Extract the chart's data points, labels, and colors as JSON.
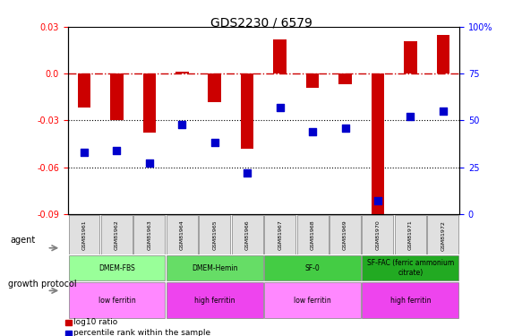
{
  "title": "GDS2230 / 6579",
  "samples": [
    "GSM81961",
    "GSM81962",
    "GSM81963",
    "GSM81964",
    "GSM81965",
    "GSM81966",
    "GSM81967",
    "GSM81968",
    "GSM81969",
    "GSM81970",
    "GSM81971",
    "GSM81972"
  ],
  "log10_ratio": [
    -0.022,
    -0.03,
    -0.038,
    0.001,
    -0.018,
    -0.048,
    0.022,
    -0.009,
    -0.007,
    -0.092,
    0.021,
    0.025
  ],
  "percentile_rank": [
    33,
    34,
    27,
    48,
    38,
    22,
    57,
    44,
    46,
    7,
    52,
    55
  ],
  "ylim_left": [
    -0.09,
    0.03
  ],
  "ylim_right": [
    0,
    100
  ],
  "yticks_left": [
    -0.09,
    -0.06,
    -0.03,
    0.0,
    0.03
  ],
  "yticks_right": [
    0,
    25,
    50,
    75,
    100
  ],
  "hline_zero": 0.0,
  "hline_dotted": [
    -0.03,
    -0.06
  ],
  "bar_color": "#CC0000",
  "scatter_color": "#0000CC",
  "agent_groups": [
    {
      "label": "DMEM-FBS",
      "start": 0,
      "end": 3,
      "color": "#99FF99"
    },
    {
      "label": "DMEM-Hemin",
      "start": 3,
      "end": 6,
      "color": "#66DD66"
    },
    {
      "label": "SF-0",
      "start": 6,
      "end": 9,
      "color": "#44CC44"
    },
    {
      "label": "SF-FAC (ferric ammonium\ncitrate)",
      "start": 9,
      "end": 12,
      "color": "#22AA22"
    }
  ],
  "protocol_groups": [
    {
      "label": "low ferritin",
      "start": 0,
      "end": 3,
      "color": "#FF88FF"
    },
    {
      "label": "high ferritin",
      "start": 3,
      "end": 6,
      "color": "#EE44EE"
    },
    {
      "label": "low ferritin",
      "start": 6,
      "end": 9,
      "color": "#FF88FF"
    },
    {
      "label": "high ferritin",
      "start": 9,
      "end": 12,
      "color": "#EE44EE"
    }
  ],
  "legend_items": [
    {
      "label": "log10 ratio",
      "color": "#CC0000",
      "marker": "s"
    },
    {
      "label": "percentile rank within the sample",
      "color": "#0000CC",
      "marker": "s"
    }
  ],
  "zero_line_color": "#CC0000",
  "scatter_size": 40,
  "bar_width": 0.4
}
